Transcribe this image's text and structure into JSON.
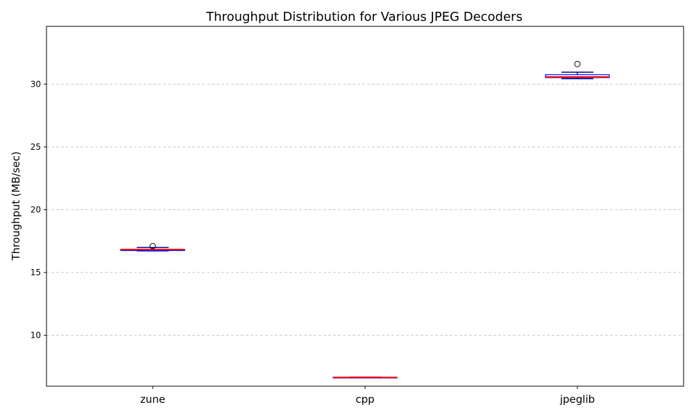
{
  "chart_data": {
    "type": "box",
    "title": "Throughput Distribution for Various JPEG Decoders",
    "xlabel": "",
    "ylabel": "Throughput (MB/sec)",
    "ylim": [
      5.95,
      34.6
    ],
    "yticks": [
      10,
      15,
      20,
      25,
      30
    ],
    "grid": "y-dashed",
    "categories": [
      "zune",
      "cpp",
      "jpeglib"
    ],
    "boxes": [
      {
        "category": "zune",
        "whisker_low": 16.72,
        "q1": 16.75,
        "median": 16.83,
        "q3": 16.85,
        "whisker_high": 17.0,
        "outliers": [
          17.1
        ]
      },
      {
        "category": "cpp",
        "whisker_low": 6.63,
        "q1": 6.64,
        "median": 6.65,
        "q3": 6.66,
        "whisker_high": 6.67,
        "outliers": []
      },
      {
        "category": "jpeglib",
        "whisker_low": 30.43,
        "q1": 30.52,
        "median": 30.57,
        "q3": 30.75,
        "whisker_high": 30.95,
        "outliers": [
          31.6
        ]
      }
    ],
    "colors": {
      "box": "#0000ff",
      "whisker": "#00008b",
      "median": "#ff0000",
      "grid": "#c8c8c8"
    }
  }
}
